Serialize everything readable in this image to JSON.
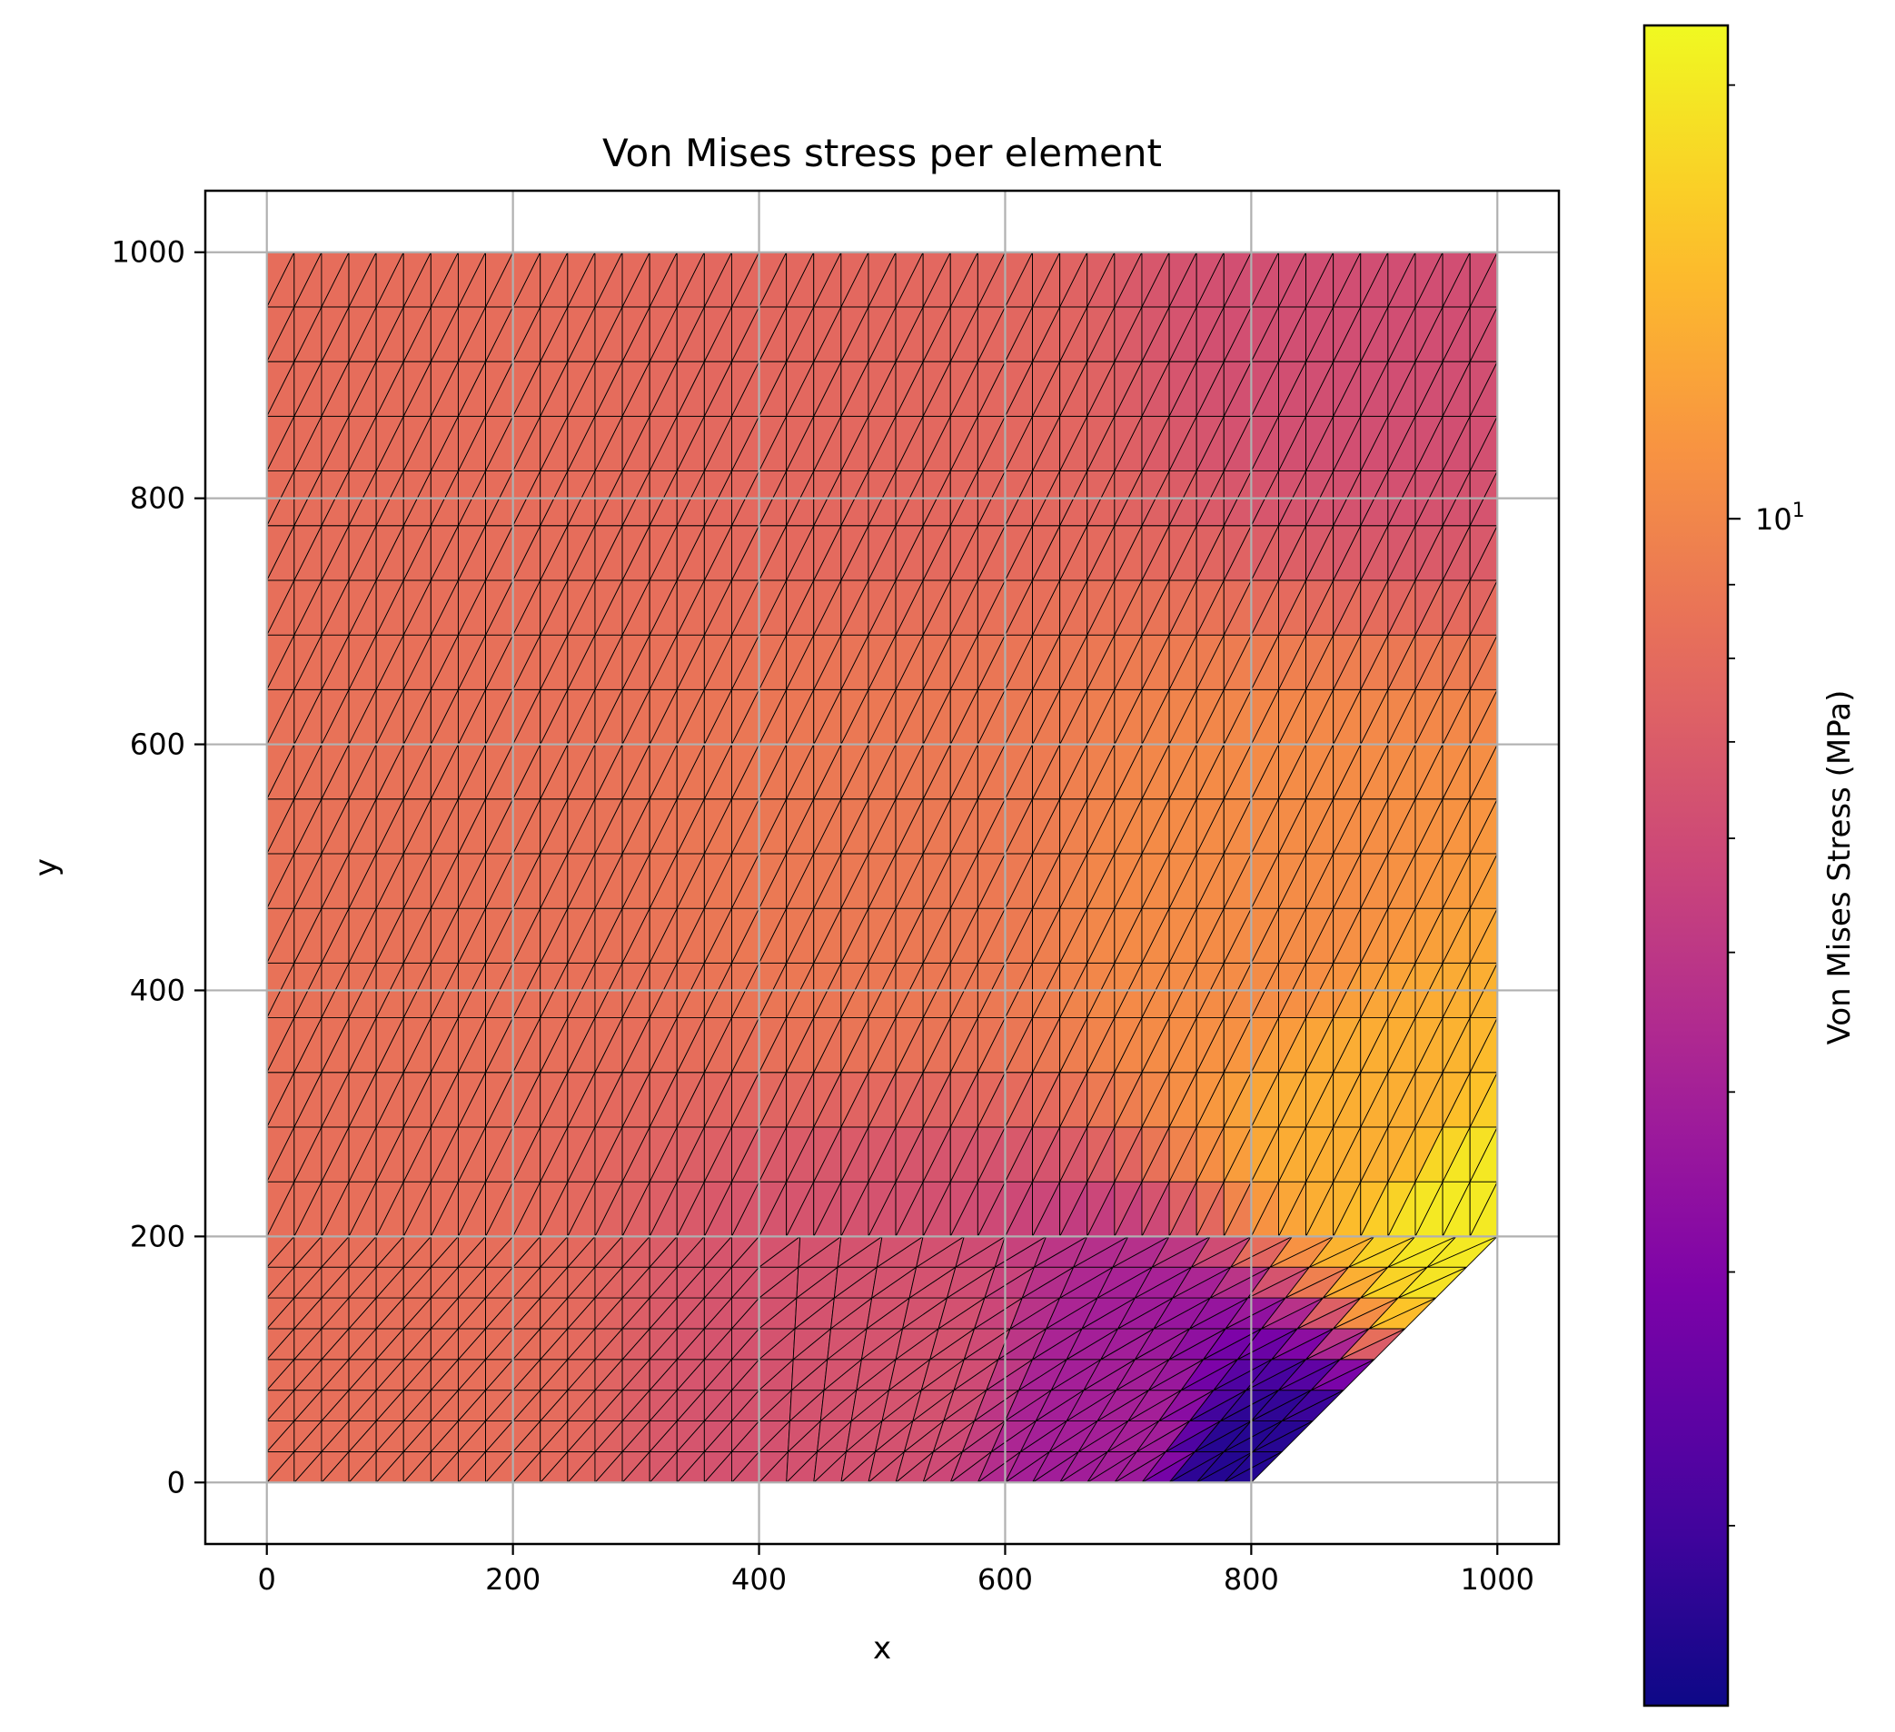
{
  "chart_data": {
    "type": "heatmap",
    "title": "Von Mises stress per element",
    "xlabel": "x",
    "ylabel": "y",
    "xlim": [
      -50,
      1050
    ],
    "ylim": [
      -50,
      1050
    ],
    "xticks": [
      0,
      200,
      400,
      600,
      800,
      1000
    ],
    "yticks": [
      0,
      200,
      400,
      600,
      800,
      1000
    ],
    "grid": true,
    "mesh": {
      "domain": "unit plate 0–1000 x 0–1000 with corner cut from (800,0) to (1000,200)",
      "upper_region": {
        "y_range": [
          200,
          1000
        ],
        "nx": 45,
        "ny": 18
      },
      "lower_region": {
        "y_range": [
          0,
          200
        ],
        "nx_per_side": 18,
        "ny": 8
      },
      "element_type": "triangular",
      "edge_color": "#000000"
    },
    "stress_field_samples": [
      {
        "x": 100,
        "y": 900,
        "value": 8.2
      },
      {
        "x": 500,
        "y": 900,
        "value": 7.8
      },
      {
        "x": 900,
        "y": 950,
        "value": 6.2
      },
      {
        "x": 100,
        "y": 500,
        "value": 8.5
      },
      {
        "x": 500,
        "y": 500,
        "value": 9.0
      },
      {
        "x": 800,
        "y": 450,
        "value": 10.5
      },
      {
        "x": 900,
        "y": 300,
        "value": 13.5
      },
      {
        "x": 980,
        "y": 220,
        "value": 20.0
      },
      {
        "x": 100,
        "y": 100,
        "value": 8.3
      },
      {
        "x": 500,
        "y": 100,
        "value": 6.5
      },
      {
        "x": 700,
        "y": 50,
        "value": 4.0
      },
      {
        "x": 790,
        "y": 10,
        "value": 1.7
      }
    ],
    "colorbar": {
      "label": "Von Mises Stress (MPa)",
      "colormap": "plasma",
      "scale": "log",
      "vmin": 1.5,
      "vmax": 22,
      "tick_label": {
        "base": "10",
        "exponent": "1"
      },
      "tick_value": 10,
      "minor_ticks": [
        2,
        3,
        4,
        5,
        6,
        7,
        8,
        9,
        20
      ]
    }
  }
}
